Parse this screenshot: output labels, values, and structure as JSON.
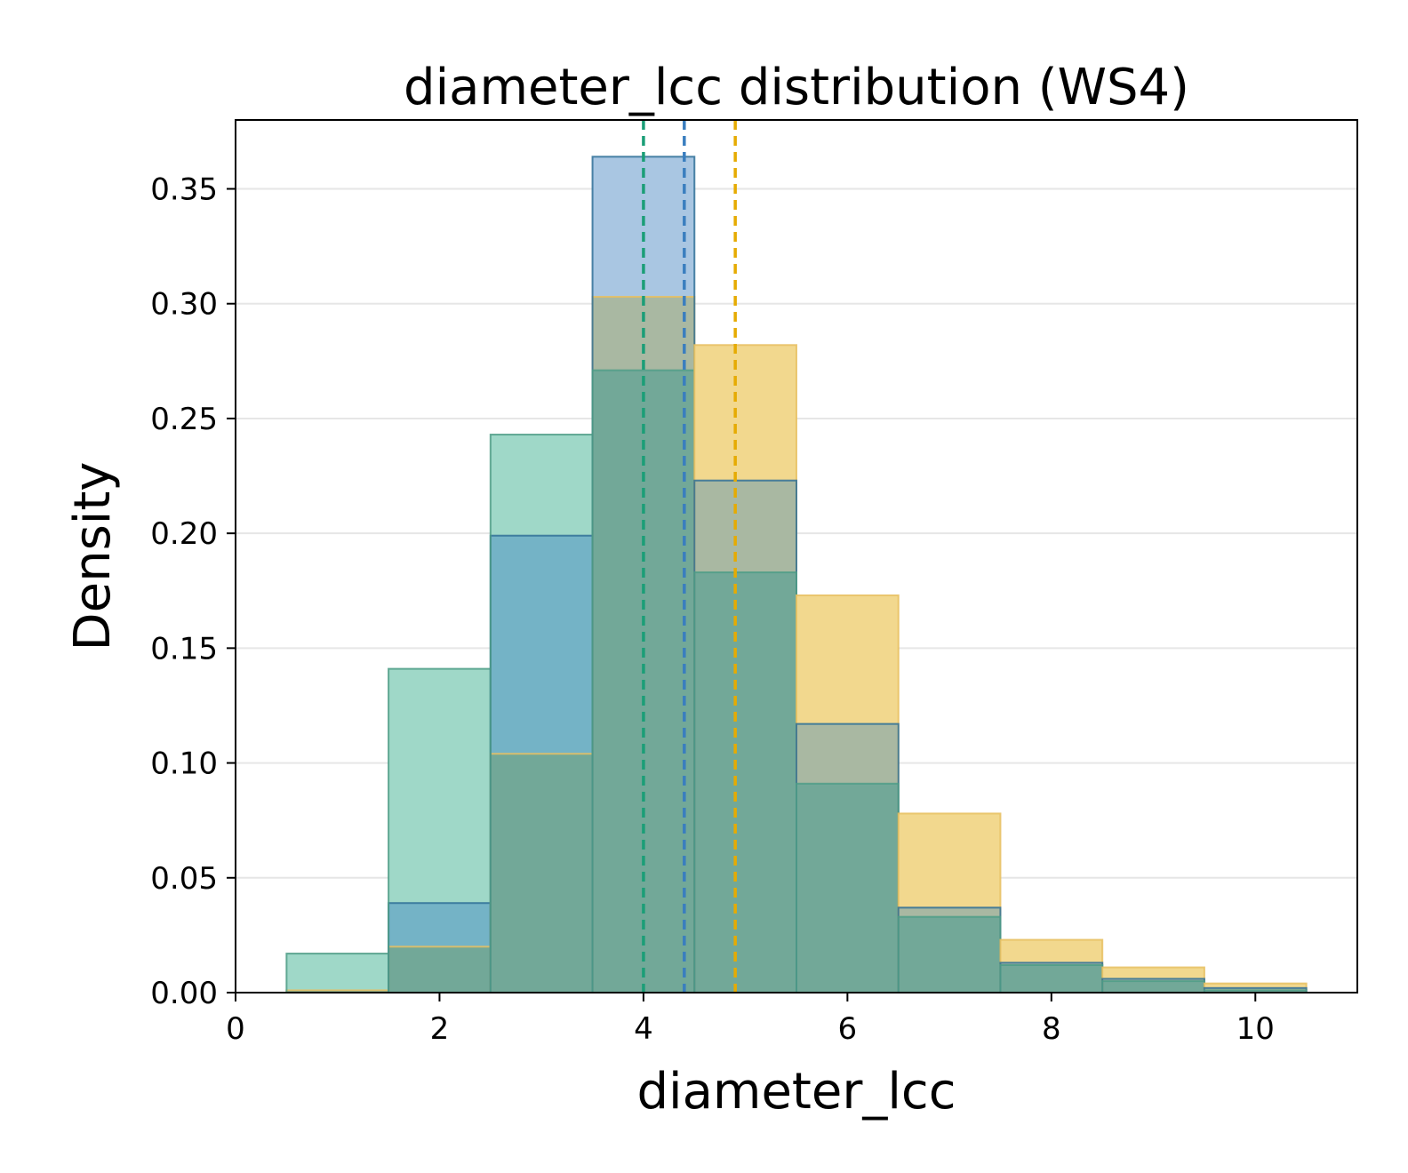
{
  "chart_data": {
    "type": "histogram",
    "title": "diameter_lcc distribution (WS4)",
    "xlabel": "diameter_lcc",
    "ylabel": "Density",
    "xlim": [
      0,
      11
    ],
    "ylim": [
      0,
      0.38
    ],
    "xticks": [
      0,
      2,
      4,
      6,
      8,
      10
    ],
    "xtick_labels": [
      "0",
      "2",
      "4",
      "6",
      "8",
      "10"
    ],
    "yticks": [
      0,
      0.05,
      0.1,
      0.15,
      0.2,
      0.25,
      0.3,
      0.35
    ],
    "ytick_labels": [
      "0.00",
      "0.05",
      "0.10",
      "0.15",
      "0.20",
      "0.25",
      "0.30",
      "0.35"
    ],
    "grid": "horizontal",
    "bin_edges": [
      0.5,
      1.5,
      2.5,
      3.5,
      4.5,
      5.5,
      6.5,
      7.5,
      8.5,
      9.5,
      10.5
    ],
    "series": [
      {
        "name": "yellow",
        "color": "#E6AB02",
        "fill": "#F2D88E",
        "edge": "#E8C060",
        "values": [
          0.001,
          0.02,
          0.104,
          0.303,
          0.282,
          0.173,
          0.078,
          0.023,
          0.011,
          0.004
        ],
        "mean": 4.9
      },
      {
        "name": "blue",
        "color": "#3A7EBF",
        "fill": "#A9C6E2",
        "edge": "#7FA6CC",
        "values": [
          0.0,
          0.039,
          0.199,
          0.364,
          0.223,
          0.117,
          0.037,
          0.013,
          0.006,
          0.002
        ],
        "mean": 4.4
      },
      {
        "name": "teal",
        "color": "#1B9E77",
        "fill": "#9FD8C8",
        "edge": "#6DBFA5",
        "values": [
          0.017,
          0.141,
          0.243,
          0.271,
          0.183,
          0.091,
          0.033,
          0.012,
          0.005,
          0.001
        ],
        "mean": 4.0
      }
    ],
    "overlap_colors": {
      "yellow_blue": "#A9B8A2",
      "yellow_teal": "#72A898",
      "blue_teal": "#74B3C6",
      "all": "#72A898",
      "blue_teal_edge": "#2E6E96"
    }
  }
}
